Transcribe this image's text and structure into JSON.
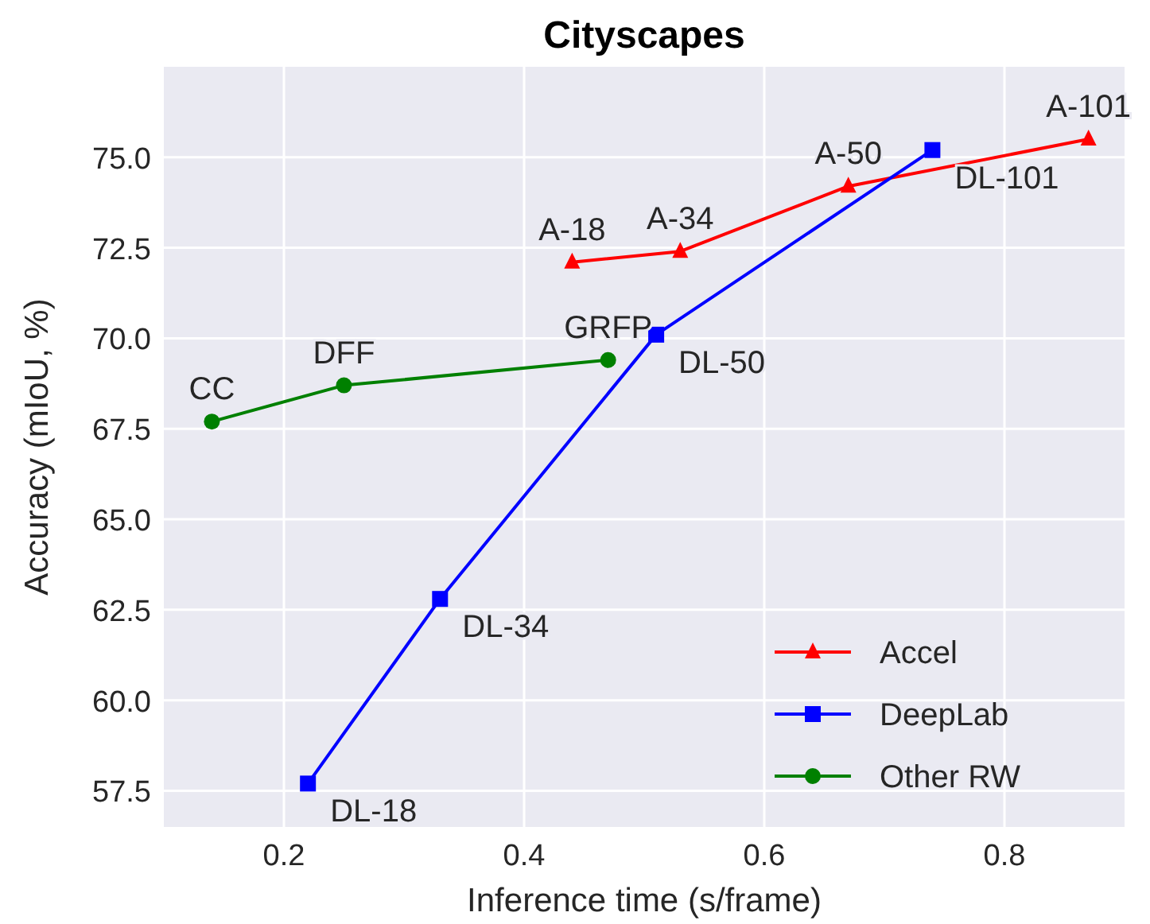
{
  "chart_data": {
    "type": "line",
    "title": "Cityscapes",
    "xlabel": "Inference time (s/frame)",
    "ylabel": "Accuracy (mIoU, %)",
    "xlim": [
      0.1,
      0.9
    ],
    "ylim": [
      56.5,
      77.5
    ],
    "xticks": [
      {
        "value": 0.2,
        "label": "0.2"
      },
      {
        "value": 0.4,
        "label": "0.4"
      },
      {
        "value": 0.6,
        "label": "0.6"
      },
      {
        "value": 0.8,
        "label": "0.8"
      }
    ],
    "yticks": [
      {
        "value": 57.5,
        "label": "57.5"
      },
      {
        "value": 60,
        "label": "60.0"
      },
      {
        "value": 62.5,
        "label": "62.5"
      },
      {
        "value": 65,
        "label": "65.0"
      },
      {
        "value": 67.5,
        "label": "67.5"
      },
      {
        "value": 70,
        "label": "70.0"
      },
      {
        "value": 72.5,
        "label": "72.5"
      },
      {
        "value": 75,
        "label": "75.0"
      }
    ],
    "grid": true,
    "legend": "bottom right",
    "line_style": "solid",
    "series": [
      {
        "name": "Accel",
        "color": "#ff0000",
        "marker": "triangle",
        "x": [
          0.44,
          0.53,
          0.67,
          0.87
        ],
        "values": [
          72.1,
          72.4,
          74.2,
          75.5
        ]
      },
      {
        "name": "DeepLab",
        "color": "#0000ff",
        "marker": "square",
        "x": [
          0.22,
          0.33,
          0.51,
          0.74
        ],
        "values": [
          57.7,
          62.8,
          70.1,
          75.2
        ]
      },
      {
        "name": "Other RW",
        "color": "#008000",
        "marker": "circle",
        "x": [
          0.14,
          0.25,
          0.47
        ],
        "values": [
          67.7,
          68.7,
          69.4
        ]
      }
    ],
    "annotations": [
      {
        "text": "A-18",
        "x": 0.44,
        "y": 72.1
      },
      {
        "text": "A-34",
        "x": 0.53,
        "y": 72.4
      },
      {
        "text": "A-50",
        "x": 0.67,
        "y": 74.2
      },
      {
        "text": "A-101",
        "x": 0.87,
        "y": 75.5
      },
      {
        "text": "DL-18",
        "x": 0.22,
        "y": 57.7
      },
      {
        "text": "DL-34",
        "x": 0.33,
        "y": 62.8
      },
      {
        "text": "DL-50",
        "x": 0.51,
        "y": 70.1
      },
      {
        "text": "DL-101",
        "x": 0.74,
        "y": 75.2
      },
      {
        "text": "CC",
        "x": 0.14,
        "y": 67.7
      },
      {
        "text": "DFF",
        "x": 0.25,
        "y": 68.7
      },
      {
        "text": "GRFP",
        "x": 0.47,
        "y": 69.4
      }
    ]
  }
}
